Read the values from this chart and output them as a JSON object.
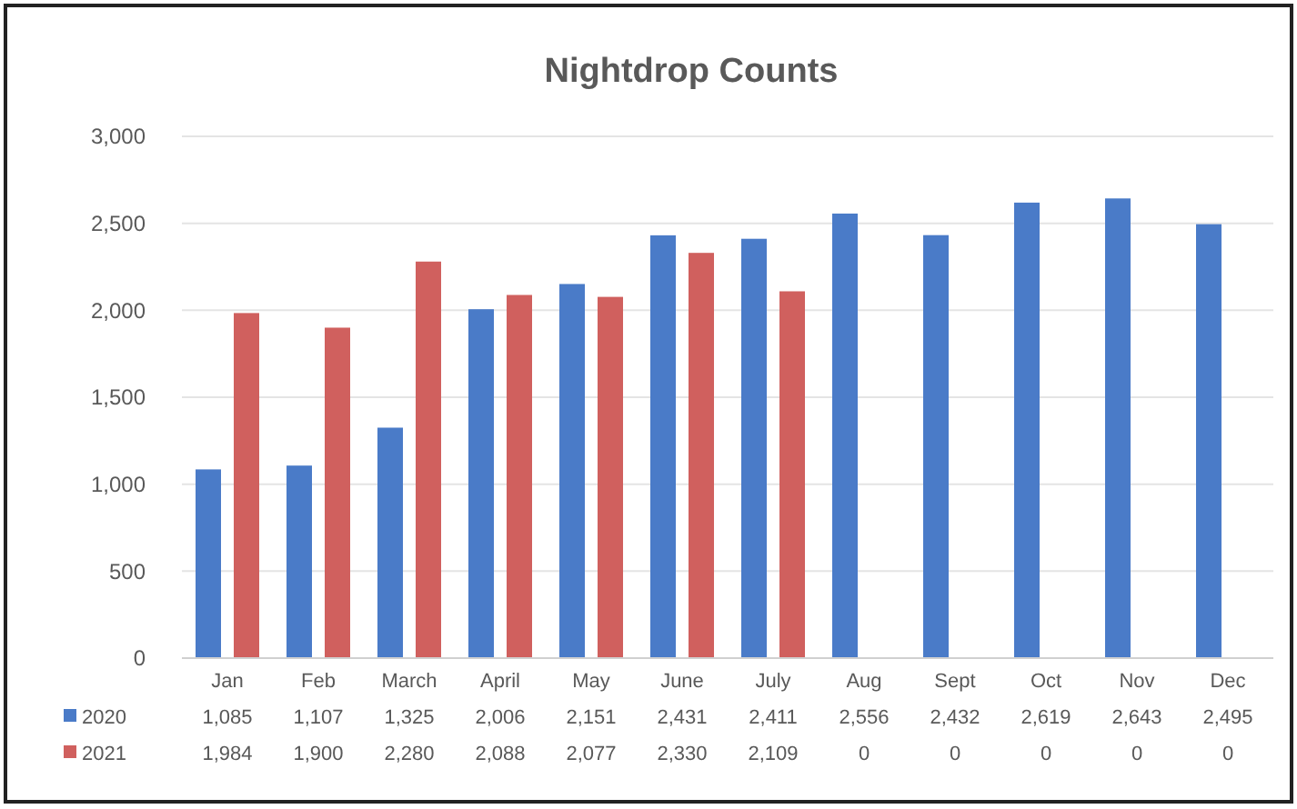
{
  "chart_data": {
    "type": "bar",
    "title": "Nightdrop Counts",
    "categories": [
      "Jan",
      "Feb",
      "March",
      "April",
      "May",
      "June",
      "July",
      "Aug",
      "Sept",
      "Oct",
      "Nov",
      "Dec"
    ],
    "series": [
      {
        "name": "2020",
        "color": "#4a7bc8",
        "values": [
          1085,
          1107,
          1325,
          2006,
          2151,
          2431,
          2411,
          2556,
          2432,
          2619,
          2643,
          2495
        ],
        "value_labels": [
          "1,085",
          "1,107",
          "1,325",
          "2,006",
          "2,151",
          "2,431",
          "2,411",
          "2,556",
          "2,432",
          "2,619",
          "2,643",
          "2,495"
        ]
      },
      {
        "name": "2021",
        "color": "#d0605e",
        "values": [
          1984,
          1900,
          2280,
          2088,
          2077,
          2330,
          2109,
          0,
          0,
          0,
          0,
          0
        ],
        "value_labels": [
          "1,984",
          "1,900",
          "2,280",
          "2,088",
          "2,077",
          "2,330",
          "2,109",
          "0",
          "0",
          "0",
          "0",
          "0"
        ]
      }
    ],
    "ylim": [
      0,
      3000
    ],
    "yticks": [
      {
        "value": 0,
        "label": "0"
      },
      {
        "value": 500,
        "label": "500"
      },
      {
        "value": 1000,
        "label": "1,000"
      },
      {
        "value": 1500,
        "label": "1,500"
      },
      {
        "value": 2000,
        "label": "2,000"
      },
      {
        "value": 2500,
        "label": "2,500"
      },
      {
        "value": 3000,
        "label": "3,000"
      }
    ],
    "grid": true,
    "legend": "bottom"
  }
}
